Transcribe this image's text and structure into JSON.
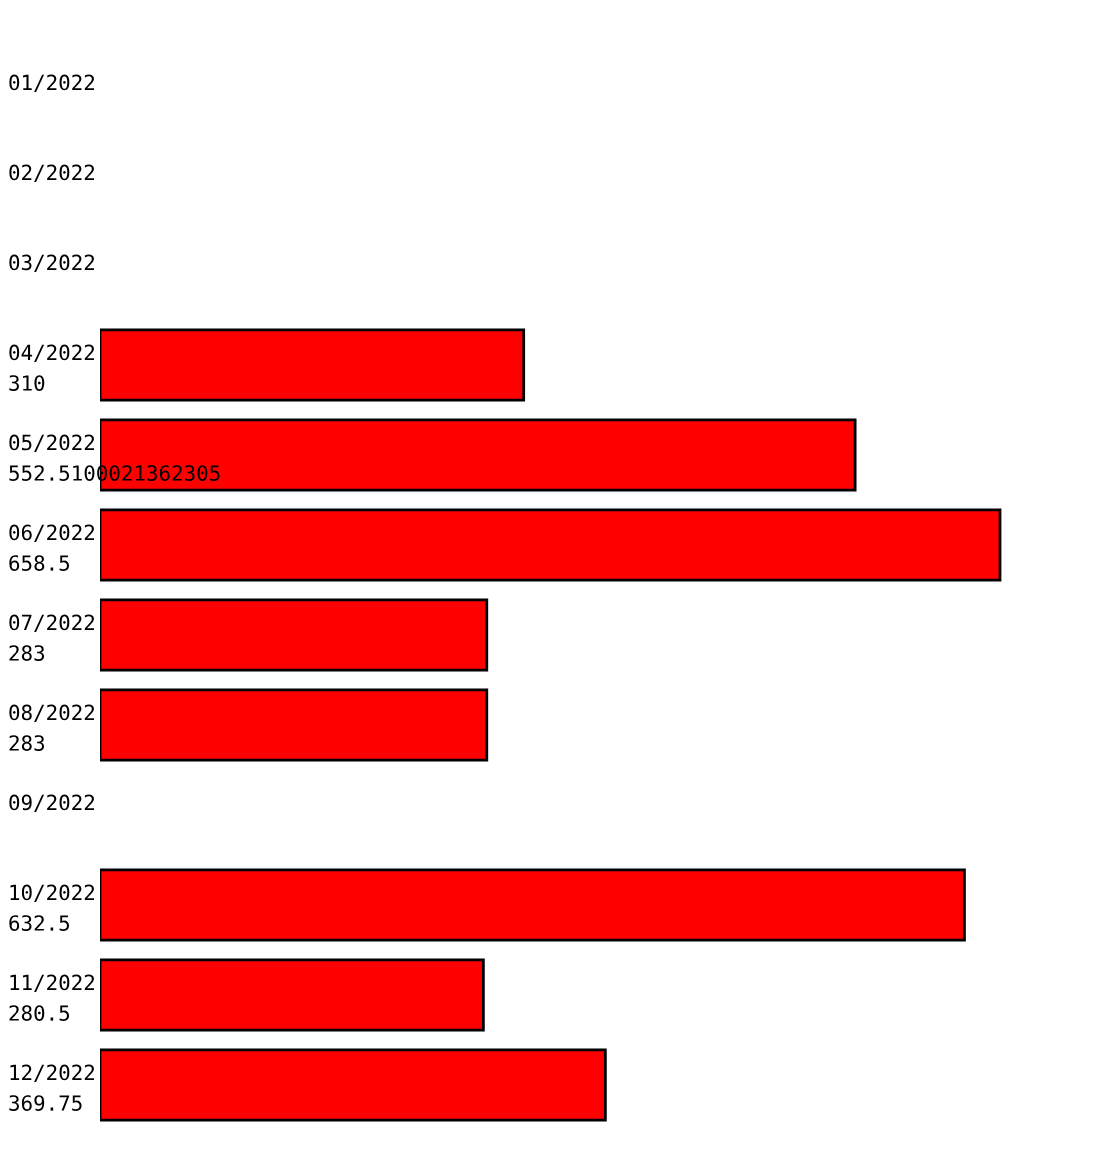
{
  "chart_data": {
    "type": "bar",
    "orientation": "horizontal",
    "categories": [
      "01/2022",
      "02/2022",
      "03/2022",
      "04/2022",
      "05/2022",
      "06/2022",
      "07/2022",
      "08/2022",
      "09/2022",
      "10/2022",
      "11/2022",
      "12/2022"
    ],
    "values": [
      null,
      null,
      null,
      310,
      552.5100021362305,
      658.5,
      283,
      283,
      null,
      632.5,
      280.5,
      369.75
    ],
    "value_labels": [
      null,
      null,
      null,
      "310",
      "552.5100021362305",
      "658.5",
      "283",
      "283",
      null,
      "632.5",
      "280.5",
      "369.75"
    ],
    "color": "#ff0000"
  }
}
